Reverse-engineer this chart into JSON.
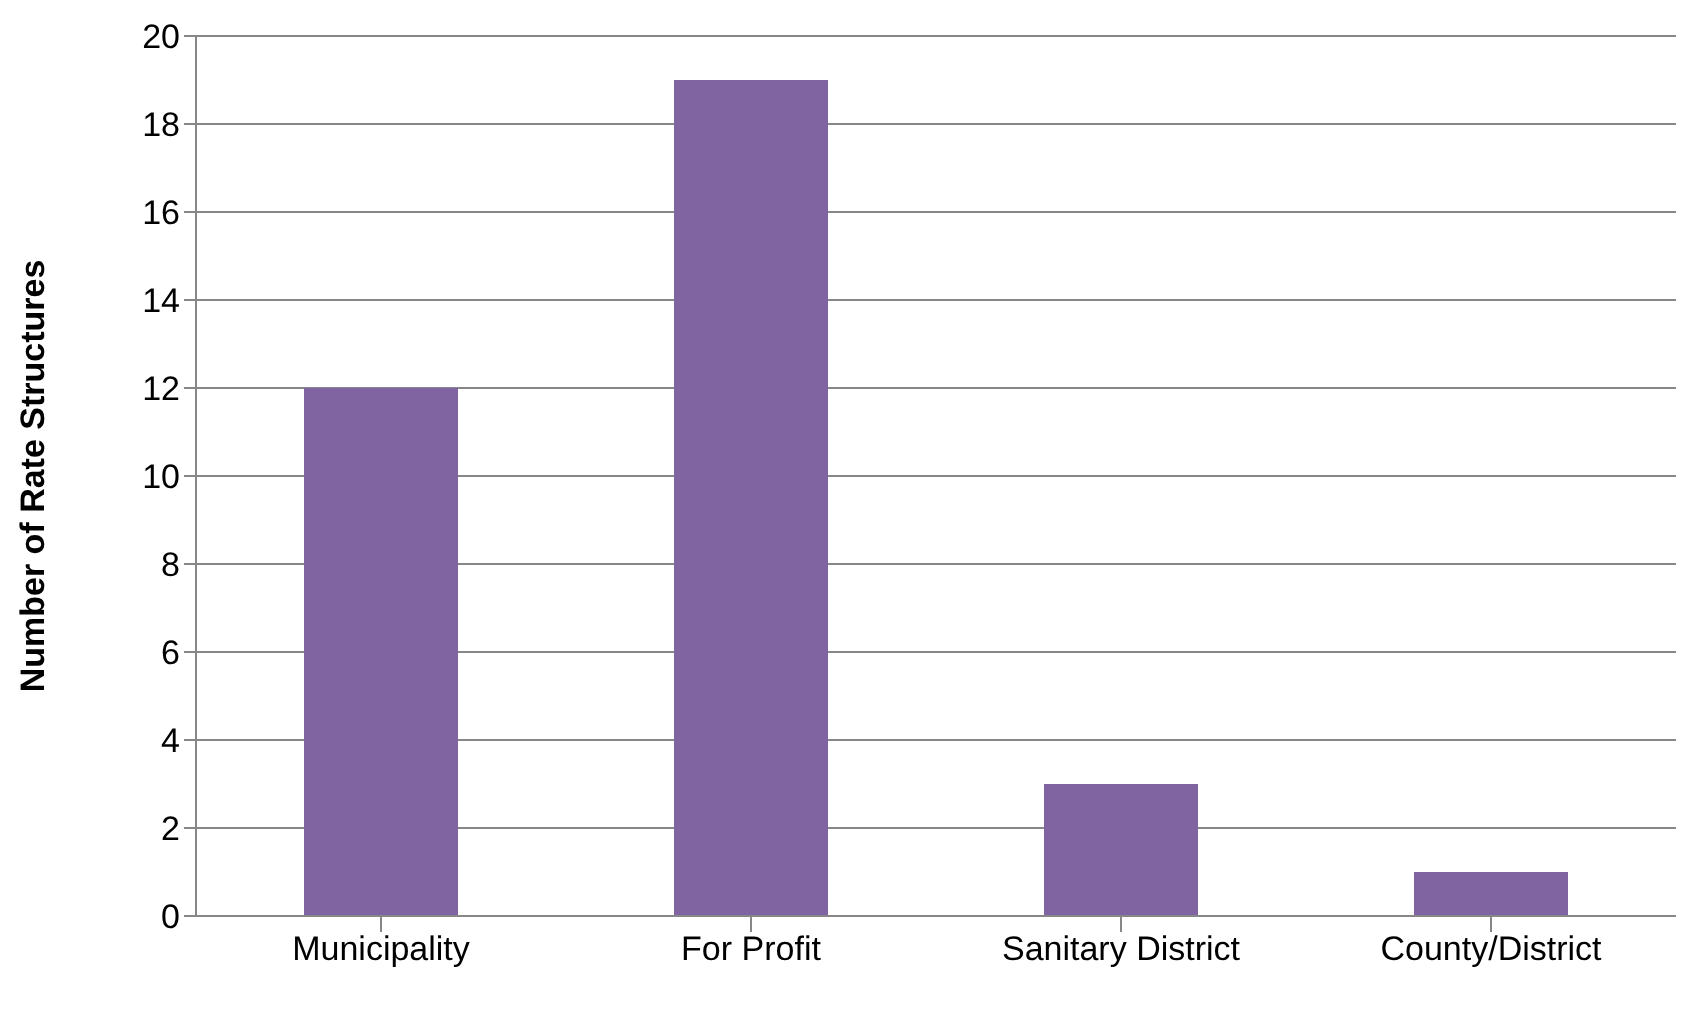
{
  "chart_data": {
    "type": "bar",
    "ylabel": "Number of Rate Structures",
    "categories": [
      "Municipality",
      "For Profit",
      "Sanitary District",
      "County/District"
    ],
    "values": [
      12,
      19,
      3,
      1
    ],
    "color": "#8064a2",
    "ylim": [
      0,
      20
    ],
    "yticks": [
      0,
      2,
      4,
      6,
      8,
      10,
      12,
      14,
      16,
      18,
      20
    ],
    "grid": "y"
  }
}
